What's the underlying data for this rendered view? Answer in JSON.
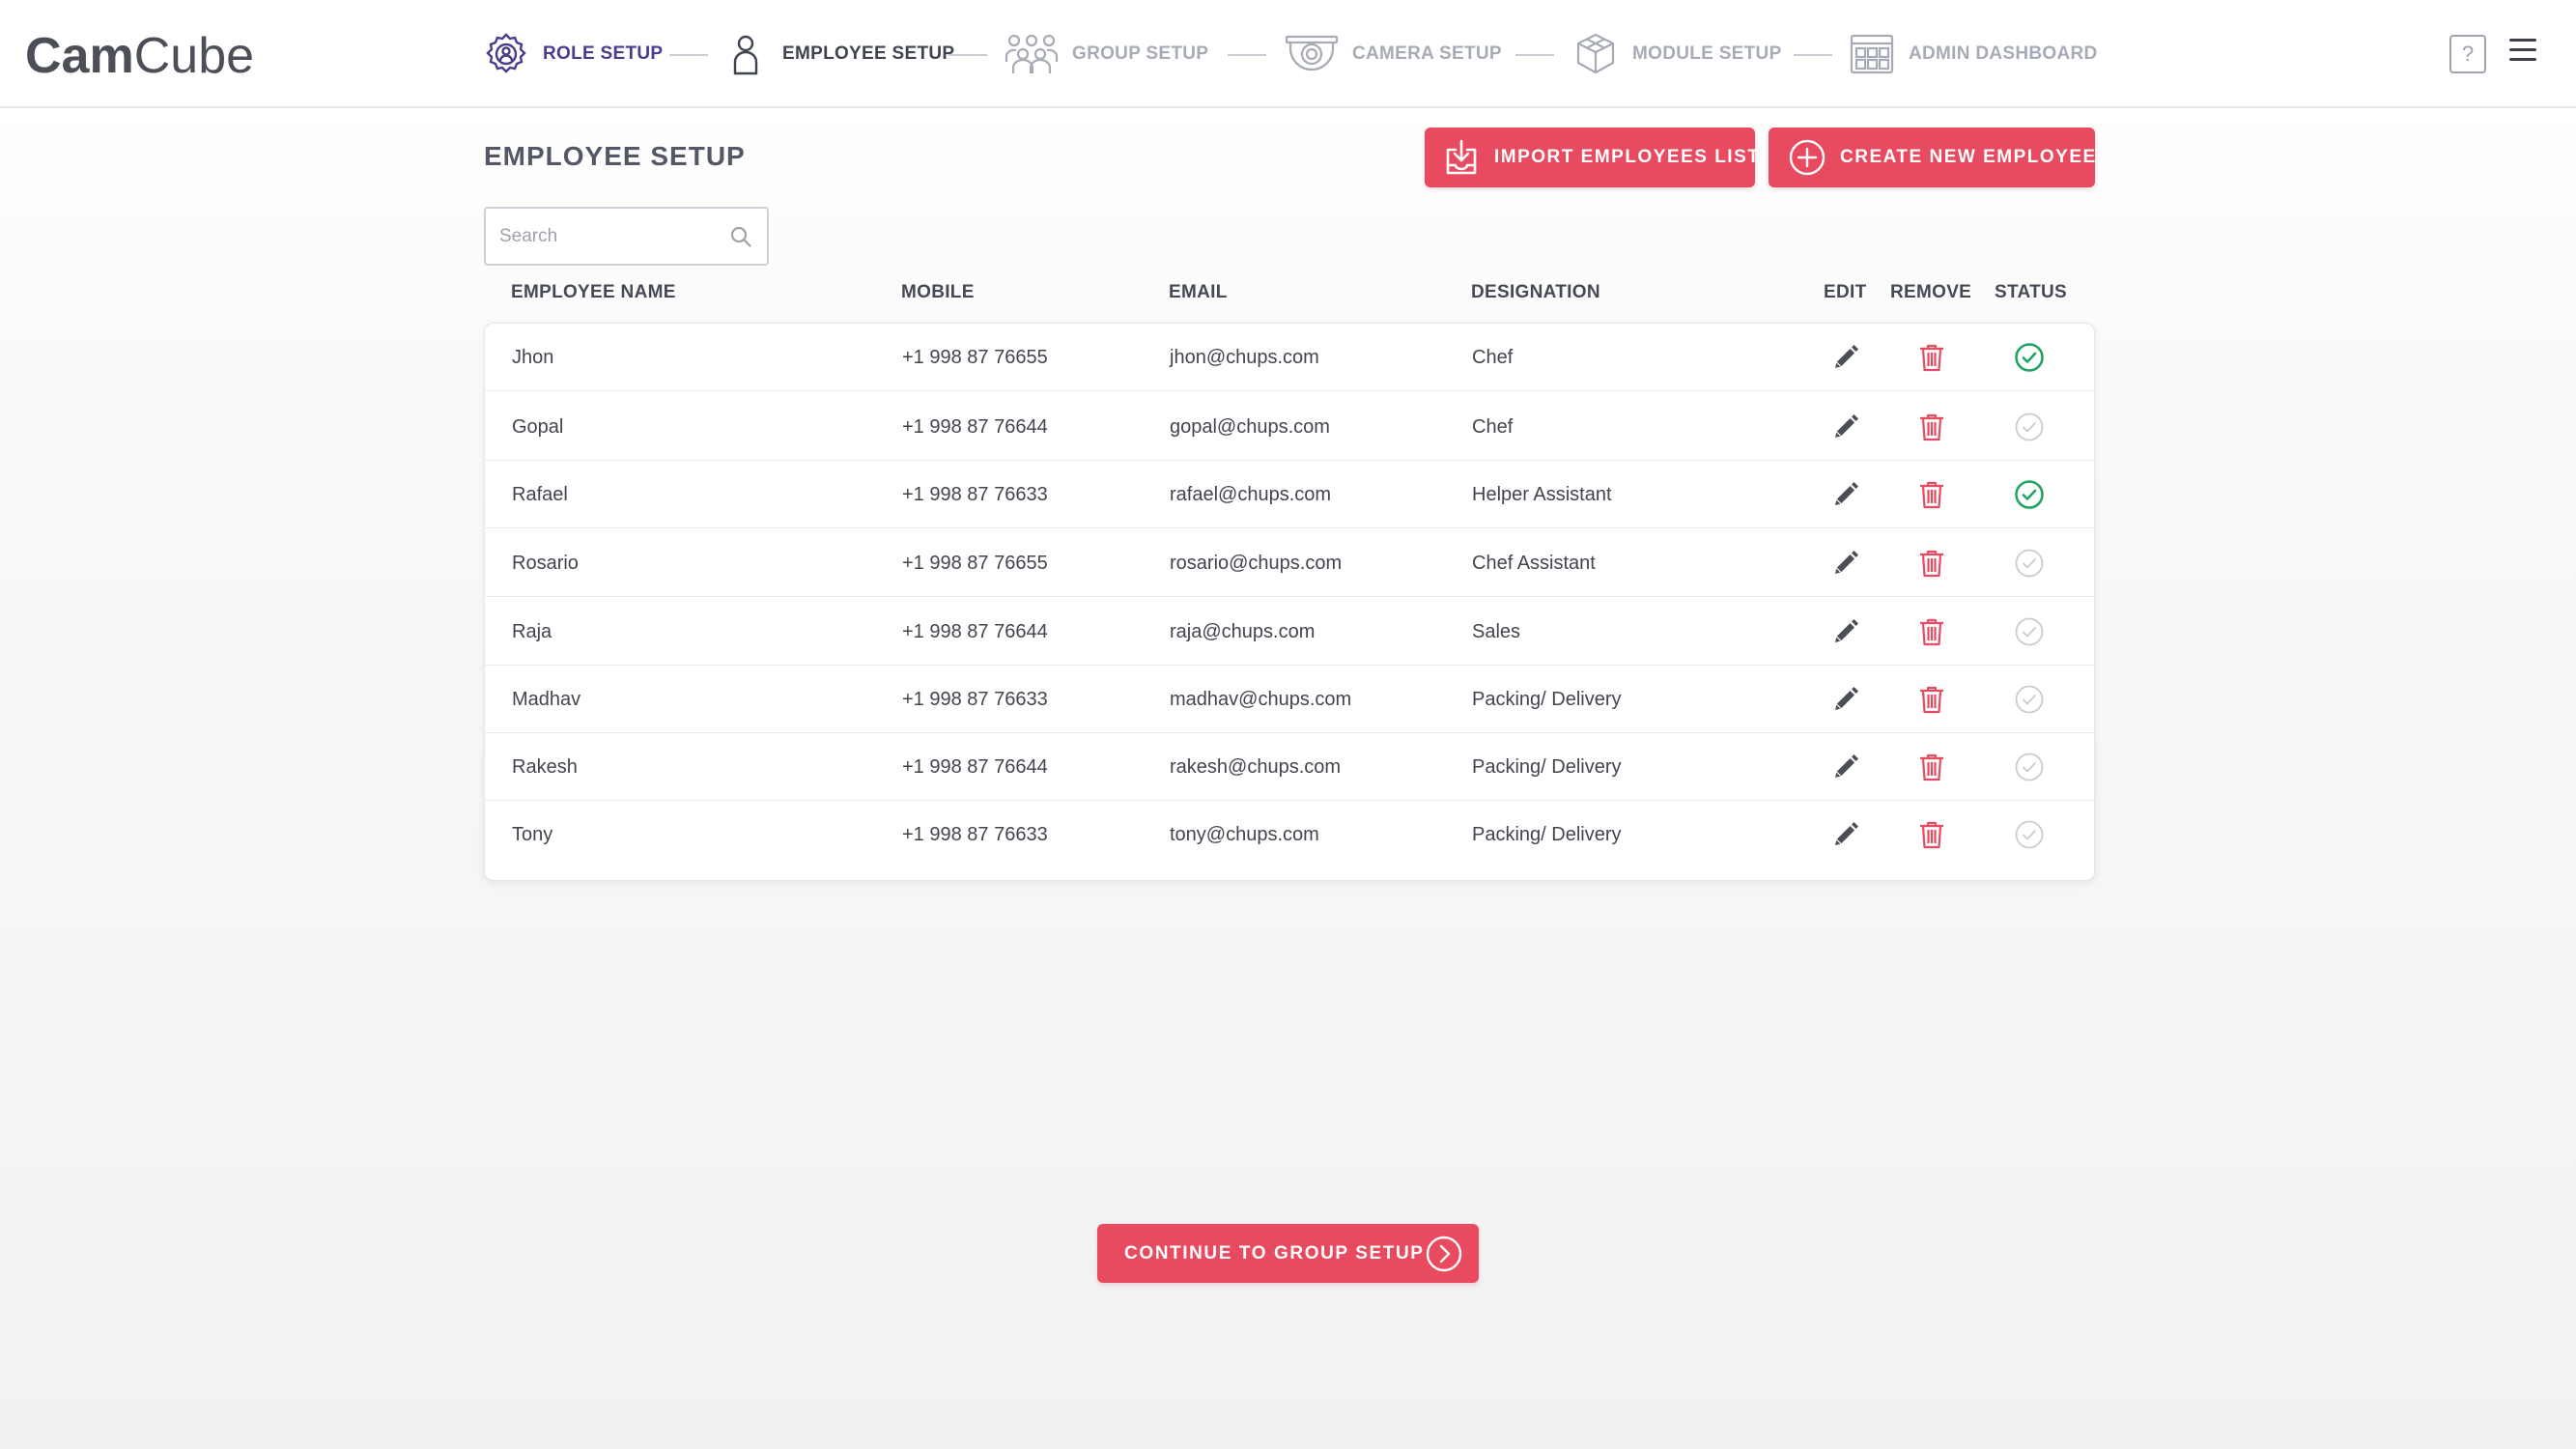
{
  "header": {
    "logo_bold": "Cam",
    "logo_light": "Cube",
    "steps": [
      {
        "label": "ROLE SETUP",
        "state": "done",
        "icon": "role-gear-icon"
      },
      {
        "label": "EMPLOYEE SETUP",
        "state": "active",
        "icon": "person-icon"
      },
      {
        "label": "GROUP SETUP",
        "state": "todo",
        "icon": "group-icon"
      },
      {
        "label": "CAMERA SETUP",
        "state": "todo",
        "icon": "camera-icon"
      },
      {
        "label": "MODULE SETUP",
        "state": "todo",
        "icon": "module-cube-icon"
      },
      {
        "label": "ADMIN DASHBOARD",
        "state": "todo",
        "icon": "dashboard-grid-icon"
      }
    ],
    "help_label": "?",
    "menu_icon": "hamburger-icon"
  },
  "page": {
    "title": "EMPLOYEE SETUP",
    "import_button": "IMPORT EMPLOYEES LIST",
    "create_button": "CREATE NEW EMPLOYEE",
    "search_placeholder": "Search",
    "continue_button": "CONTINUE TO GROUP SETUP"
  },
  "table": {
    "columns": [
      "EMPLOYEE NAME",
      "MOBILE",
      "EMAIL",
      "DESIGNATION",
      "EDIT",
      "REMOVE",
      "STATUS"
    ],
    "rows": [
      {
        "name": "Jhon",
        "mobile": "+1 998 87 76655",
        "email": "jhon@chups.com",
        "designation": "Chef",
        "active": true
      },
      {
        "name": "Gopal",
        "mobile": "+1 998 87 76644",
        "email": "gopal@chups.com",
        "designation": "Chef",
        "active": false
      },
      {
        "name": "Rafael",
        "mobile": "+1 998 87 76633",
        "email": "rafael@chups.com",
        "designation": "Helper Assistant",
        "active": true
      },
      {
        "name": "Rosario",
        "mobile": "+1 998 87 76655",
        "email": "rosario@chups.com",
        "designation": "Chef Assistant",
        "active": false
      },
      {
        "name": "Raja",
        "mobile": "+1 998 87 76644",
        "email": "raja@chups.com",
        "designation": "Sales",
        "active": false
      },
      {
        "name": "Madhav",
        "mobile": "+1 998 87 76633",
        "email": "madhav@chups.com",
        "designation": "Packing/ Delivery",
        "active": false
      },
      {
        "name": "Rakesh",
        "mobile": "+1 998 87 76644",
        "email": "rakesh@chups.com",
        "designation": "Packing/ Delivery",
        "active": false
      },
      {
        "name": "Tony",
        "mobile": "+1 998 87 76633",
        "email": "tony@chups.com",
        "designation": "Packing/ Delivery",
        "active": false
      }
    ]
  },
  "colors": {
    "accent": "#e84a5f",
    "status_active": "#1fa463",
    "status_inactive": "#c9ccd2",
    "step_done": "#4a3c8c",
    "step_todo": "#a7abb5"
  }
}
